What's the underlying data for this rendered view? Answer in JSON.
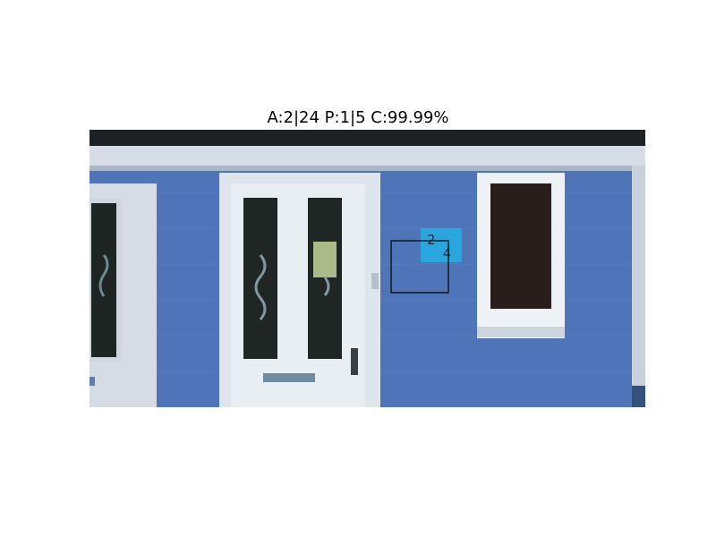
{
  "figure": {
    "title": "A:2|24 P:1|5 C:99.99%"
  },
  "photo": {
    "house_number_top": "2",
    "house_number_bottom": "4",
    "colors": {
      "brick": "#4f75b8",
      "trim": "#d6dde6",
      "sign": "#2aa6df",
      "roof": "#1f2224"
    }
  }
}
